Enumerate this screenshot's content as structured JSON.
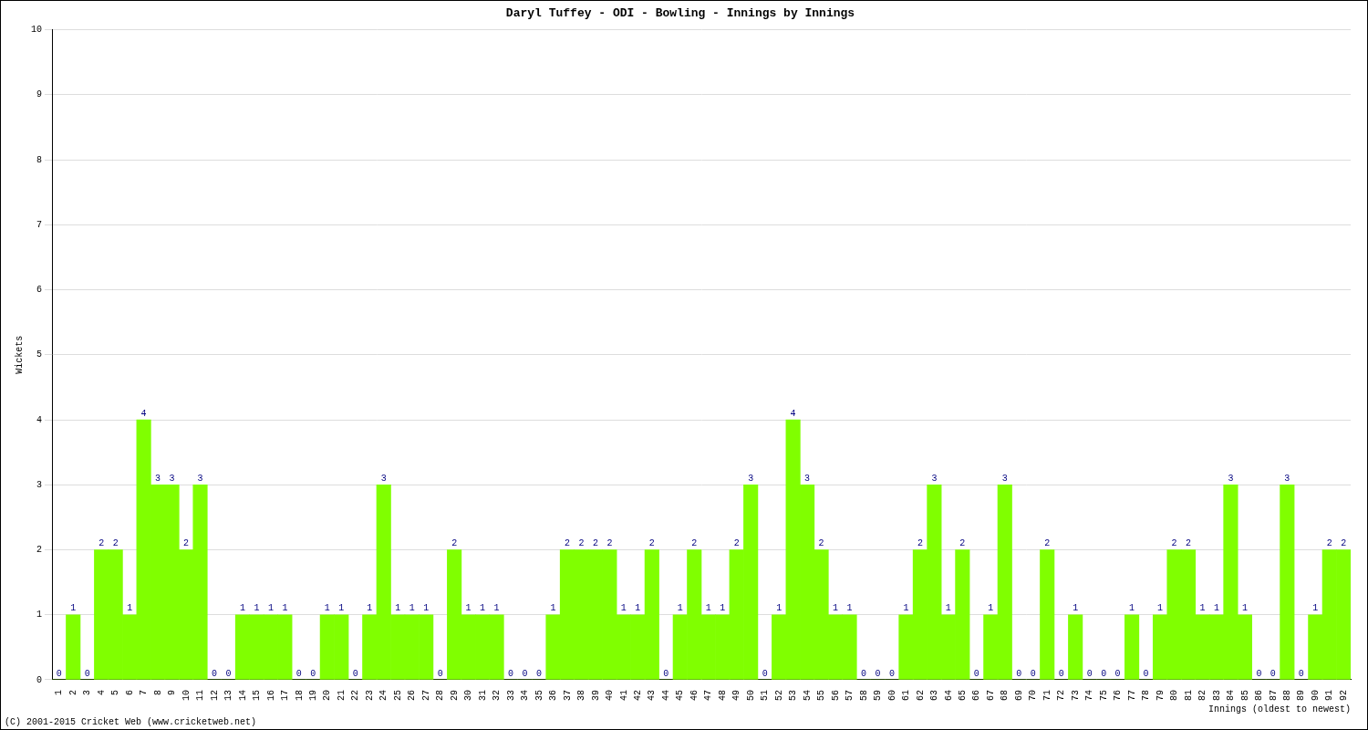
{
  "chart_data": {
    "type": "bar",
    "title": "Daryl Tuffey - ODI - Bowling - Innings by Innings",
    "y_label": "Wickets",
    "x_label": "Innings (oldest to newest)",
    "annotations": [
      "(C) 2001-2015 Cricket Web (www.cricketweb.net)"
    ],
    "categories": [
      "1",
      "2",
      "3",
      "4",
      "5",
      "6",
      "7",
      "8",
      "9",
      "10",
      "11",
      "12",
      "13",
      "14",
      "15",
      "16",
      "17",
      "18",
      "19",
      "20",
      "21",
      "22",
      "23",
      "24",
      "25",
      "26",
      "27",
      "28",
      "29",
      "30",
      "31",
      "32",
      "33",
      "34",
      "35",
      "36",
      "37",
      "38",
      "39",
      "40",
      "41",
      "42",
      "43",
      "44",
      "45",
      "46",
      "47",
      "48",
      "49",
      "50",
      "51",
      "52",
      "53",
      "54",
      "55",
      "56",
      "57",
      "58",
      "59",
      "60",
      "61",
      "62",
      "63",
      "64",
      "65",
      "66",
      "67",
      "68",
      "69",
      "70",
      "71",
      "72",
      "73",
      "74",
      "75",
      "76",
      "77",
      "78",
      "79",
      "80",
      "81",
      "82",
      "83",
      "84",
      "85",
      "86",
      "87",
      "88",
      "89",
      "90",
      "91",
      "92"
    ],
    "values": [
      0,
      1,
      0,
      2,
      2,
      1,
      4,
      3,
      3,
      2,
      3,
      0,
      0,
      1,
      1,
      1,
      1,
      0,
      0,
      1,
      1,
      0,
      1,
      3,
      1,
      1,
      1,
      0,
      2,
      1,
      1,
      1,
      0,
      0,
      0,
      1,
      2,
      2,
      2,
      2,
      1,
      1,
      2,
      0,
      1,
      2,
      1,
      1,
      2,
      3,
      0,
      1,
      4,
      3,
      2,
      1,
      1,
      0,
      0,
      0,
      1,
      2,
      3,
      1,
      2,
      0,
      1,
      3,
      0,
      0,
      2,
      0,
      1,
      0,
      0,
      0,
      1,
      0,
      1,
      2,
      2,
      1,
      1,
      3,
      1,
      0,
      0,
      3,
      0,
      1,
      2,
      2
    ],
    "color": "#80ff00",
    "ylim": [
      0,
      10
    ],
    "yticks": [
      0,
      1,
      2,
      3,
      4,
      5,
      6,
      7,
      8,
      9,
      10
    ],
    "grid": true,
    "data_labels": true
  }
}
